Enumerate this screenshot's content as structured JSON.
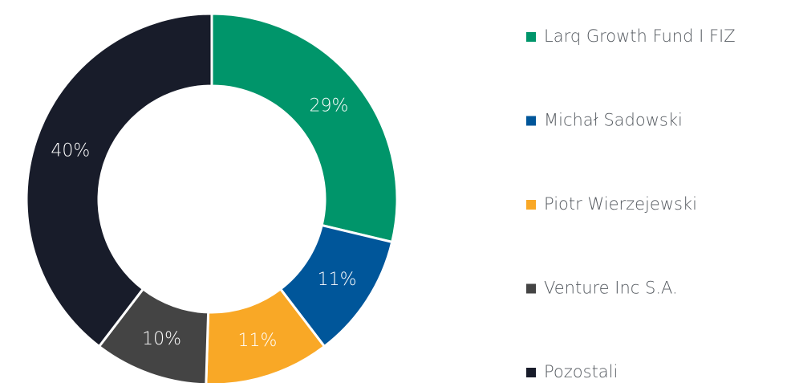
{
  "chart_data": {
    "type": "donut",
    "categories": [
      "Larq Growth Fund I FIZ",
      "Michał Sadowski",
      "Piotr Wierzejewski",
      "Venture Inc S.A.",
      "Pozostali"
    ],
    "values": [
      29,
      11,
      11,
      10,
      40
    ],
    "value_labels": [
      "29%",
      "11%",
      "11%",
      "10%",
      "40%"
    ],
    "colors": [
      "#00956a",
      "#00569a",
      "#f9a826",
      "#444444",
      "#181c2a"
    ],
    "legend": "right"
  }
}
